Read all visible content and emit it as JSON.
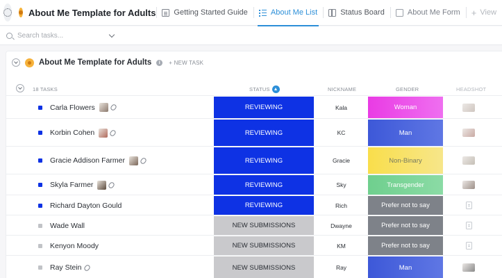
{
  "app": {
    "title": "About Me Template for Adults"
  },
  "tabs": [
    {
      "label": "Getting Started Guide",
      "icon": "doc-icon"
    },
    {
      "label": "About Me List",
      "icon": "list-icon",
      "active": true
    },
    {
      "label": "Status Board",
      "icon": "board-icon"
    },
    {
      "label": "About Me Form",
      "icon": "form-icon"
    }
  ],
  "add_view_label": "View",
  "search": {
    "placeholder": "Search tasks..."
  },
  "group": {
    "title": "About Me Template for Adults",
    "new_task_label": "+ NEW TASK"
  },
  "columns": {
    "count": "18 TASKS",
    "status": "STATUS",
    "nickname": "NICKNAME",
    "gender": "GENDER",
    "headshot": "HEADSHOT"
  },
  "colors": {
    "reviewing": "#0e32e4",
    "new_submissions": "#c9c9cc",
    "woman": "#e93be4",
    "man": "#3d58d8",
    "non_binary": "#f9de4b",
    "transgender": "#6fcf8e",
    "prefer_not": "#7e8289"
  },
  "rows": [
    {
      "name": "Carla Flowers",
      "status": "REVIEWING",
      "nickname": "Kala",
      "gender": "Woman",
      "thumb": true,
      "clip": true,
      "headshot": "photo"
    },
    {
      "name": "Korbin Cohen",
      "status": "REVIEWING",
      "nickname": "KC",
      "gender": "Man",
      "thumb": true,
      "clip": true,
      "headshot": "photo"
    },
    {
      "name": "Gracie Addison Farmer",
      "status": "REVIEWING",
      "nickname": "Gracie",
      "gender": "Non-Binary",
      "thumb": true,
      "clip": true,
      "headshot": "photo"
    },
    {
      "name": "Skyla Farmer",
      "status": "REVIEWING",
      "nickname": "Sky",
      "gender": "Transgender",
      "thumb": true,
      "clip": true,
      "headshot": "photo"
    },
    {
      "name": "Richard Dayton Gould",
      "status": "REVIEWING",
      "nickname": "Rich",
      "gender": "Prefer not to say",
      "thumb": false,
      "clip": false,
      "headshot": "doc"
    },
    {
      "name": "Wade Wall",
      "status": "NEW SUBMISSIONS",
      "nickname": "Dwayne",
      "gender": "Prefer not to say",
      "thumb": false,
      "clip": false,
      "headshot": "doc"
    },
    {
      "name": "Kenyon Moody",
      "status": "NEW SUBMISSIONS",
      "nickname": "KM",
      "gender": "Prefer not to say",
      "thumb": false,
      "clip": false,
      "headshot": "doc"
    },
    {
      "name": "Ray Stein",
      "status": "NEW SUBMISSIONS",
      "nickname": "Ray",
      "gender": "Man",
      "thumb": false,
      "clip": true,
      "headshot": "photo"
    }
  ]
}
